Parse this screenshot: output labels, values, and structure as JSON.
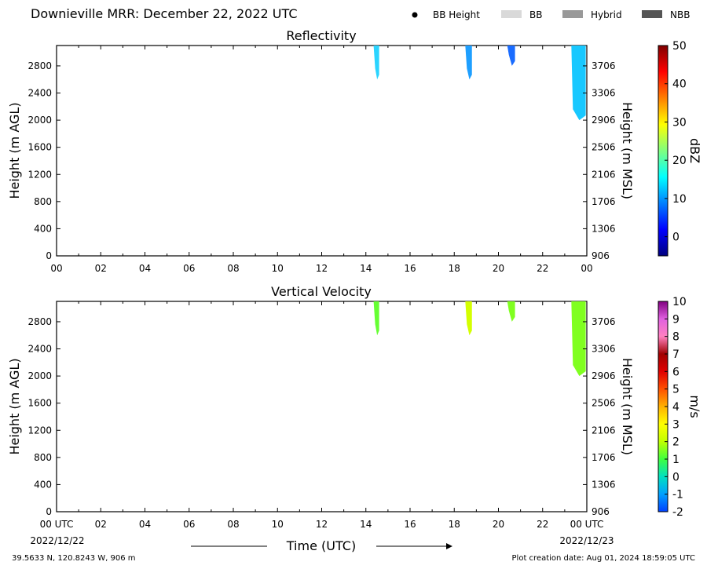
{
  "header": {
    "title": "Downieville MRR:  December 22, 2022 UTC",
    "legend": [
      {
        "name": "BB Height",
        "marker": "dot",
        "color": "#000000"
      },
      {
        "name": "BB",
        "marker": "box",
        "color": "#d9d9d9"
      },
      {
        "name": "Hybrid",
        "marker": "box",
        "color": "#999999"
      },
      {
        "name": "NBB",
        "marker": "box",
        "color": "#555555"
      }
    ]
  },
  "chart_data": [
    {
      "type": "heatmap",
      "title": "Reflectivity",
      "ylabel": "Height (m AGL)",
      "y2label": "Height (m MSL)",
      "colorbar_label": "dBZ",
      "colorbar_range": [
        -5,
        50
      ],
      "colorbar_ticks": [
        0,
        10,
        20,
        30,
        40,
        50
      ],
      "colorbar_colors": [
        "#00007f",
        "#0000ff",
        "#007fff",
        "#00ffff",
        "#7fff7f",
        "#ffff00",
        "#ff7f00",
        "#ff0000",
        "#7f0000"
      ],
      "x_tick_labels": [
        "00",
        "02",
        "04",
        "06",
        "08",
        "10",
        "12",
        "14",
        "16",
        "18",
        "20",
        "22",
        "00"
      ],
      "y_ticks": [
        0,
        400,
        800,
        1200,
        1600,
        2000,
        2400,
        2800
      ],
      "y2_ticks": [
        906,
        1306,
        1706,
        2106,
        2506,
        2906,
        3306,
        3706
      ],
      "xlim": [
        0,
        24
      ],
      "ylim": [
        0,
        3100
      ],
      "echoes": [
        {
          "x_start": 14.35,
          "x_end": 14.6,
          "y_bottom": 2600,
          "y_top": 3100,
          "color": "#2ad4ff"
        },
        {
          "x_start": 18.5,
          "x_end": 18.8,
          "y_bottom": 2600,
          "y_top": 3100,
          "color": "#1e9fff"
        },
        {
          "x_start": 20.4,
          "x_end": 20.75,
          "y_bottom": 2800,
          "y_top": 3100,
          "color": "#1a6cff"
        },
        {
          "x_start": 23.3,
          "x_end": 23.95,
          "y_bottom": 2000,
          "y_top": 3100,
          "color": "#18c8ff"
        }
      ]
    },
    {
      "type": "heatmap",
      "title": "Vertical Velocity",
      "ylabel": "Height (m AGL)",
      "y2label": "Height (m MSL)",
      "colorbar_label": "m/s",
      "colorbar_range": [
        -2,
        10
      ],
      "colorbar_ticks": [
        -2,
        -1,
        0,
        1,
        2,
        3,
        4,
        5,
        6,
        7,
        8,
        9,
        10
      ],
      "colorbar_colors": [
        "#0040ff",
        "#00a0ff",
        "#00e0c0",
        "#40ff40",
        "#c0ff00",
        "#ffff00",
        "#ffb000",
        "#ff5000",
        "#e00000",
        "#a00000",
        "#ff80c0",
        "#e060e0",
        "#800080"
      ],
      "x_tick_labels": [
        "00 UTC",
        "02",
        "04",
        "06",
        "08",
        "10",
        "12",
        "14",
        "16",
        "18",
        "20",
        "22",
        "00 UTC"
      ],
      "y_ticks": [
        0,
        400,
        800,
        1200,
        1600,
        2000,
        2400,
        2800
      ],
      "y2_ticks": [
        906,
        1306,
        1706,
        2106,
        2506,
        2906,
        3306,
        3706
      ],
      "xlim": [
        0,
        24
      ],
      "ylim": [
        0,
        3100
      ],
      "xlabel": "Time (UTC)",
      "date_start": "2022/12/22",
      "date_end": "2022/12/23",
      "echoes": [
        {
          "x_start": 14.35,
          "x_end": 14.6,
          "y_bottom": 2600,
          "y_top": 3100,
          "color": "#66ff33"
        },
        {
          "x_start": 18.5,
          "x_end": 18.8,
          "y_bottom": 2600,
          "y_top": 3100,
          "color": "#d4ff00"
        },
        {
          "x_start": 20.4,
          "x_end": 20.75,
          "y_bottom": 2800,
          "y_top": 3100,
          "color": "#80ff20"
        },
        {
          "x_start": 23.3,
          "x_end": 23.95,
          "y_bottom": 2000,
          "y_top": 3100,
          "color": "#80ff20"
        }
      ]
    }
  ],
  "footer": {
    "location": "39.5633 N, 120.8243 W, 906 m",
    "creation": "Plot creation date: Aug 01, 2024 18:59:05 UTC"
  }
}
